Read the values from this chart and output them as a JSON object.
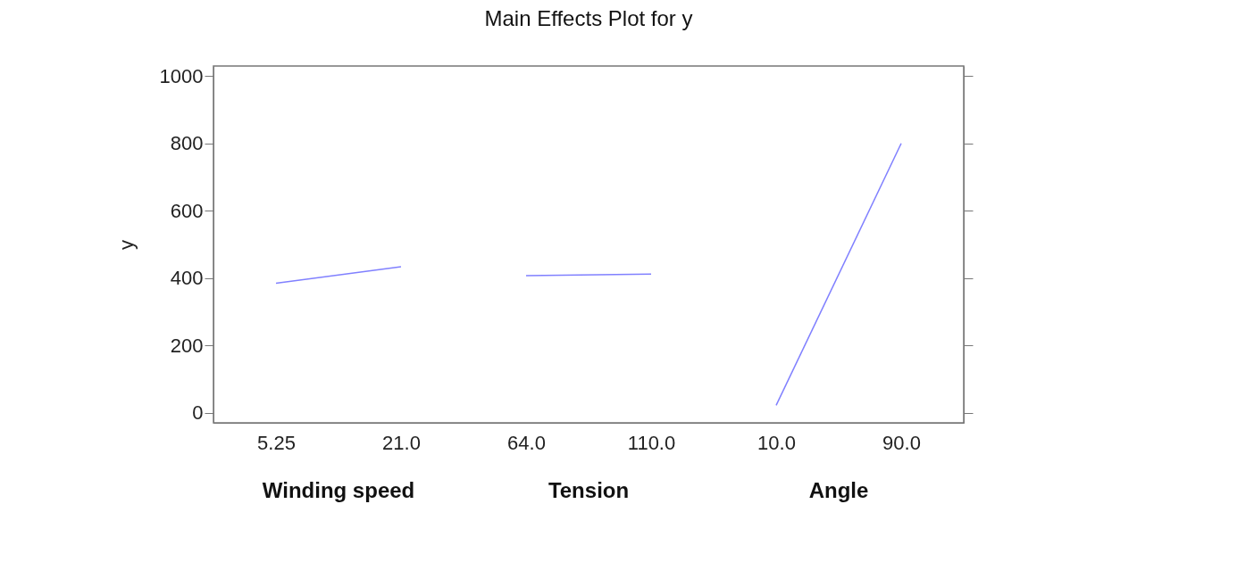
{
  "chart_data": {
    "type": "line",
    "title": "Main Effects Plot for y",
    "ylabel": "y",
    "categories": [
      "5.25",
      "21.0",
      "64.0",
      "110.0",
      "10.0",
      "90.0"
    ],
    "series": [
      {
        "color": "#8080ff",
        "values": [
          385,
          434,
          null,
          null,
          null,
          null
        ]
      },
      {
        "color": "#8080ff",
        "values": [
          null,
          null,
          407,
          412,
          null,
          null
        ]
      },
      {
        "color": "#8080ff",
        "values": [
          null,
          null,
          null,
          null,
          22,
          800
        ]
      }
    ],
    "ylim": [
      -30,
      1030
    ],
    "yticks": [
      0,
      200,
      400,
      600,
      800,
      1000
    ],
    "grid": false,
    "legend": false,
    "marker": "none",
    "line_style": "solid",
    "annotations": [
      "Winding speed",
      "Tension",
      "Angle"
    ]
  }
}
